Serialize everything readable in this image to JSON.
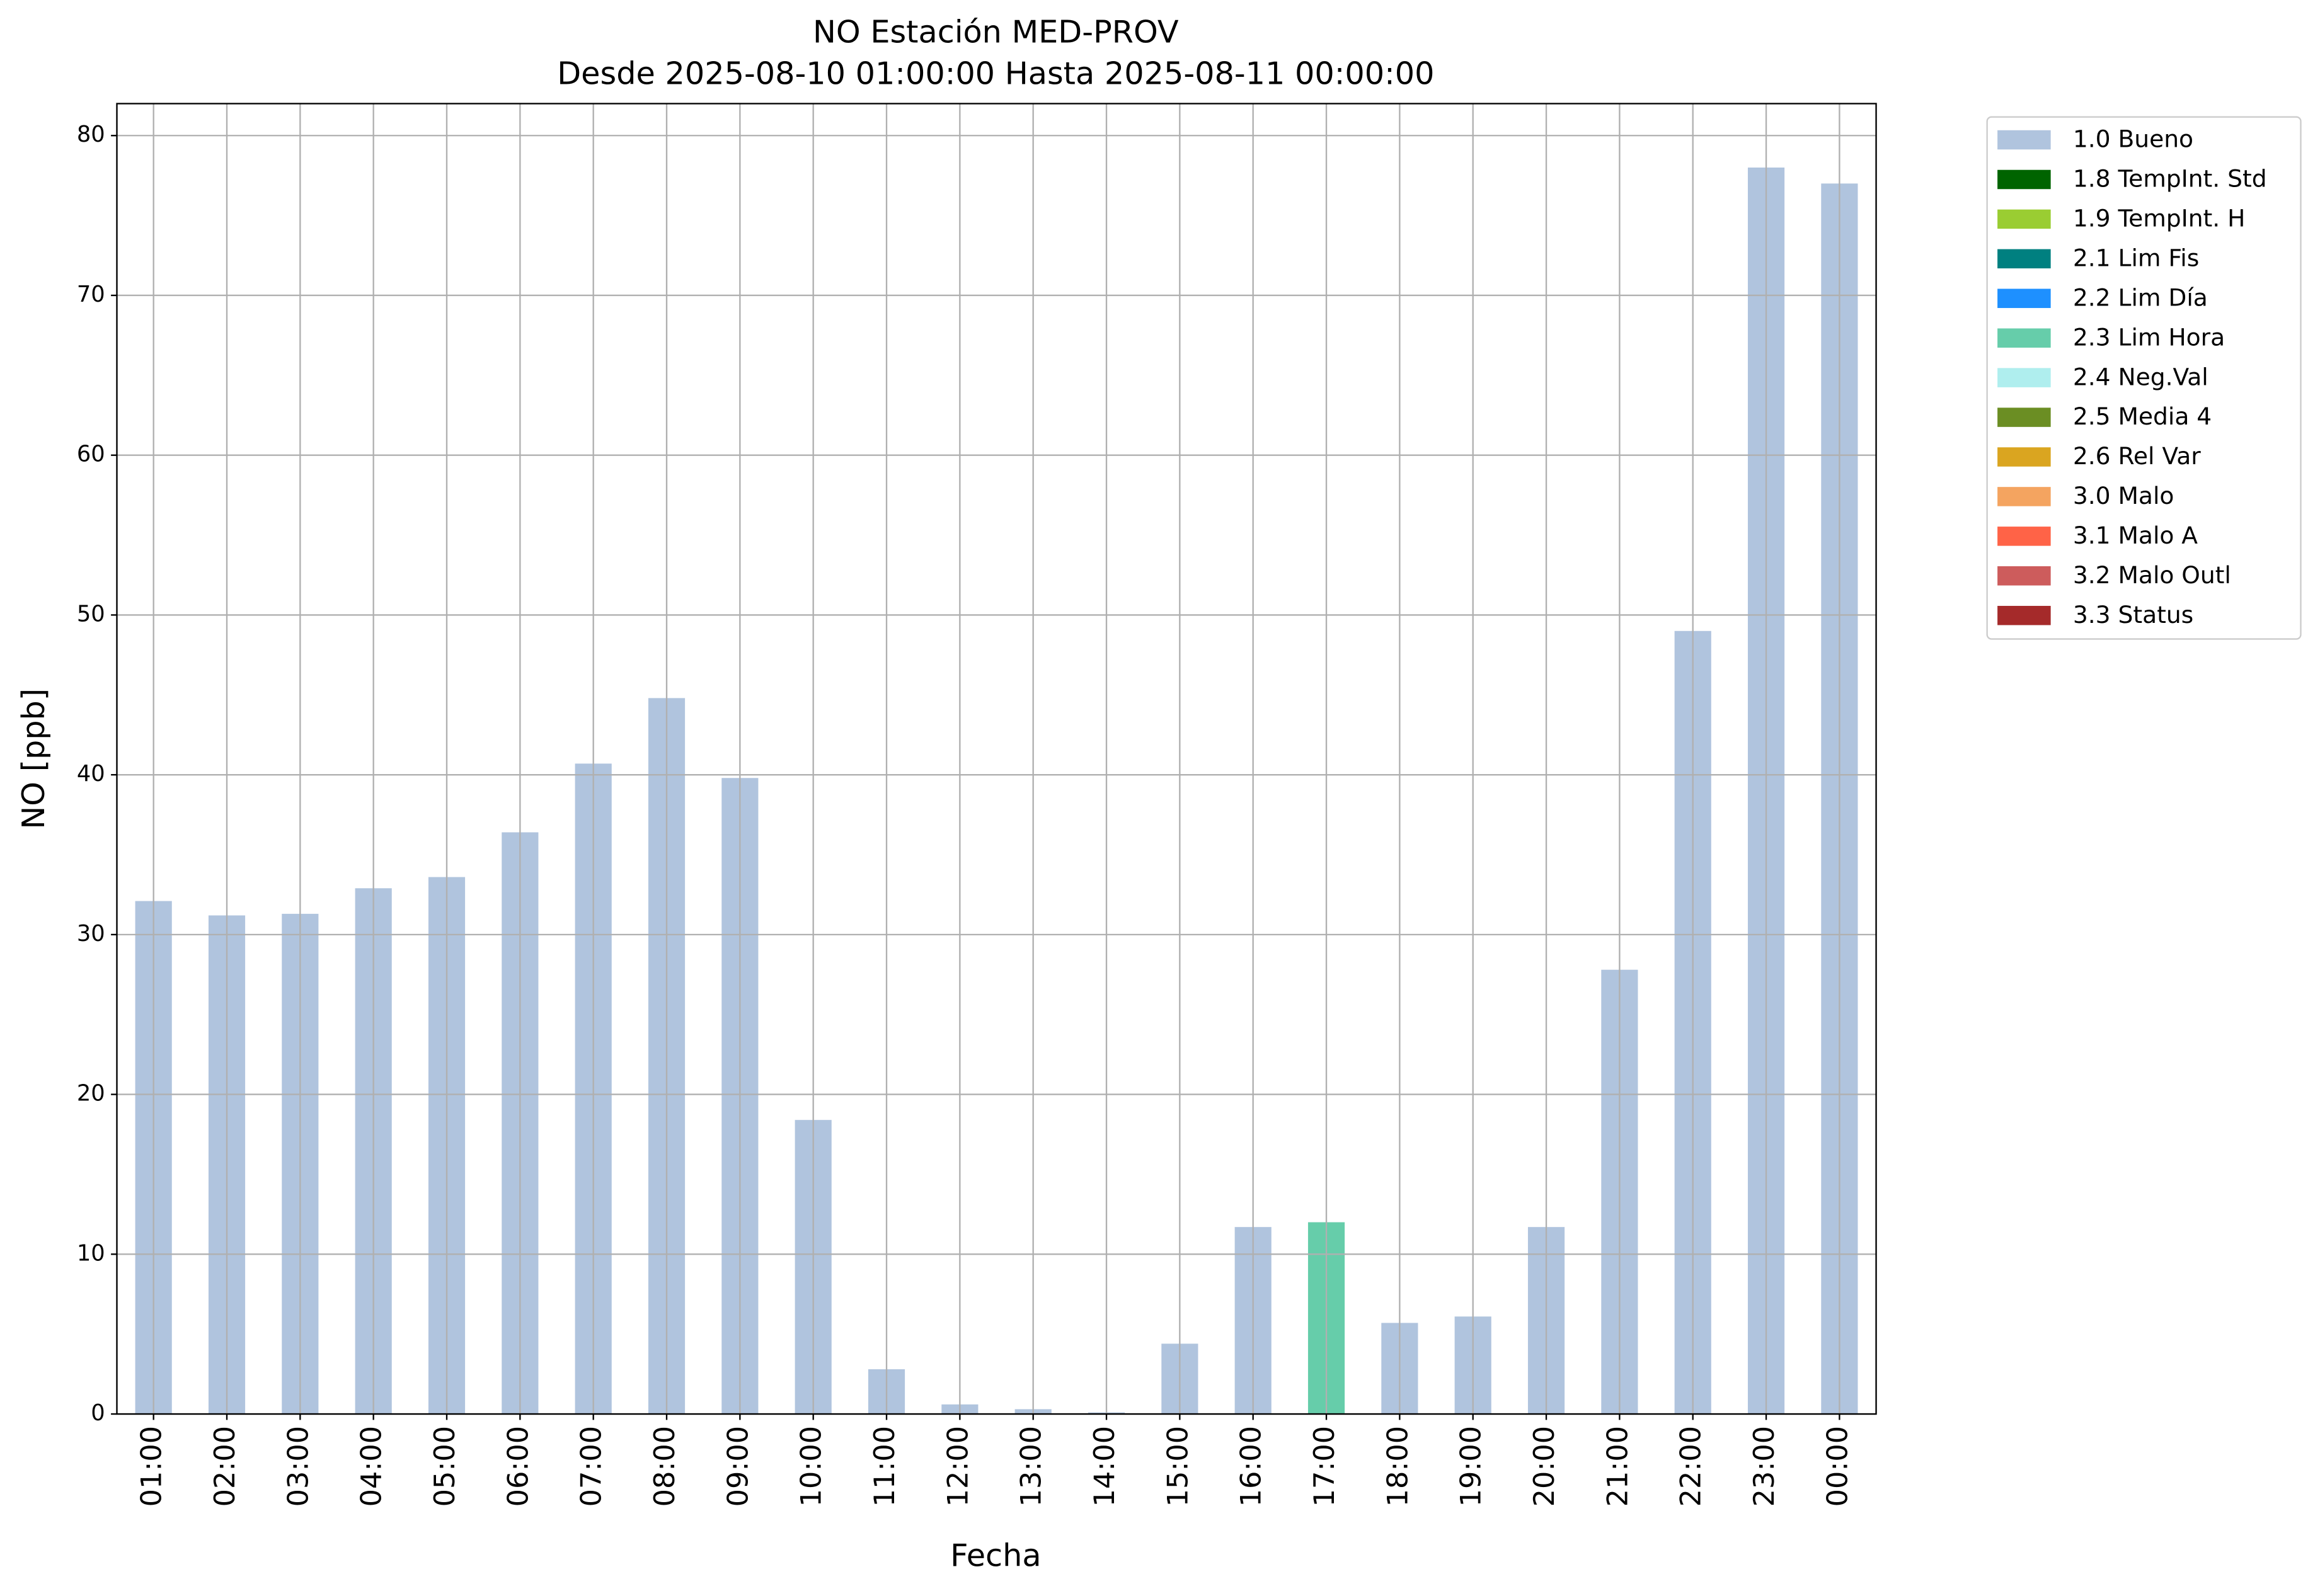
{
  "chart_data": {
    "type": "bar",
    "stacked": true,
    "title": "NO Estación MED-PROV",
    "subtitle": "Desde 2025-08-10 01:00:00 Hasta 2025-08-11 00:00:00",
    "x_label": "Fecha",
    "y_label": "NO [ppb]",
    "categories": [
      "01:00",
      "02:00",
      "03:00",
      "04:00",
      "05:00",
      "06:00",
      "07:00",
      "08:00",
      "09:00",
      "10:00",
      "11:00",
      "12:00",
      "13:00",
      "14:00",
      "15:00",
      "16:00",
      "17:00",
      "18:00",
      "19:00",
      "20:00",
      "21:00",
      "22:00",
      "23:00",
      "00:00"
    ],
    "ylim": [
      0,
      82
    ],
    "yticks": [
      0,
      10,
      20,
      30,
      40,
      50,
      60,
      70,
      80
    ],
    "grid": true,
    "legend": "outside-right",
    "series": [
      {
        "name": "1.0 Bueno",
        "color": "#b0c4de",
        "values": [
          32.1,
          31.2,
          31.3,
          32.9,
          33.6,
          36.4,
          40.7,
          44.8,
          39.8,
          18.4,
          2.8,
          0.6,
          0.3,
          0.1,
          4.4,
          11.7,
          null,
          5.7,
          6.1,
          11.7,
          27.8,
          49.0,
          78.0,
          77.0
        ]
      },
      {
        "name": "1.8 TempInt. Std",
        "color": "#006400",
        "values": [
          null,
          null,
          null,
          null,
          null,
          null,
          null,
          null,
          null,
          null,
          null,
          null,
          null,
          null,
          null,
          null,
          null,
          null,
          null,
          null,
          null,
          null,
          null,
          null
        ]
      },
      {
        "name": "1.9 TempInt. H",
        "color": "#9acd32",
        "values": [
          null,
          null,
          null,
          null,
          null,
          null,
          null,
          null,
          null,
          null,
          null,
          null,
          null,
          null,
          null,
          null,
          null,
          null,
          null,
          null,
          null,
          null,
          null,
          null
        ]
      },
      {
        "name": "2.1 Lim Fis",
        "color": "#008080",
        "values": [
          null,
          null,
          null,
          null,
          null,
          null,
          null,
          null,
          null,
          null,
          null,
          null,
          null,
          null,
          null,
          null,
          null,
          null,
          null,
          null,
          null,
          null,
          null,
          null
        ]
      },
      {
        "name": "2.2 Lim Día",
        "color": "#1e90ff",
        "values": [
          null,
          null,
          null,
          null,
          null,
          null,
          null,
          null,
          null,
          null,
          null,
          null,
          null,
          null,
          null,
          null,
          null,
          null,
          null,
          null,
          null,
          null,
          null,
          null
        ]
      },
      {
        "name": "2.3 Lim Hora",
        "color": "#66cdaa",
        "values": [
          null,
          null,
          null,
          null,
          null,
          null,
          null,
          null,
          null,
          null,
          null,
          null,
          null,
          null,
          null,
          null,
          12.0,
          null,
          null,
          null,
          null,
          null,
          null,
          null
        ]
      },
      {
        "name": "2.4 Neg.Val",
        "color": "#afeeee",
        "values": [
          null,
          null,
          null,
          null,
          null,
          null,
          null,
          null,
          null,
          null,
          null,
          null,
          null,
          null,
          null,
          null,
          null,
          null,
          null,
          null,
          null,
          null,
          null,
          null
        ]
      },
      {
        "name": "2.5 Media 4",
        "color": "#6b8e23",
        "values": [
          null,
          null,
          null,
          null,
          null,
          null,
          null,
          null,
          null,
          null,
          null,
          null,
          null,
          null,
          null,
          null,
          null,
          null,
          null,
          null,
          null,
          null,
          null,
          null
        ]
      },
      {
        "name": "2.6 Rel Var",
        "color": "#daa520",
        "values": [
          null,
          null,
          null,
          null,
          null,
          null,
          null,
          null,
          null,
          null,
          null,
          null,
          null,
          null,
          null,
          null,
          null,
          null,
          null,
          null,
          null,
          null,
          null,
          null
        ]
      },
      {
        "name": "3.0 Malo",
        "color": "#f4a460",
        "values": [
          null,
          null,
          null,
          null,
          null,
          null,
          null,
          null,
          null,
          null,
          null,
          null,
          null,
          null,
          null,
          null,
          null,
          null,
          null,
          null,
          null,
          null,
          null,
          null
        ]
      },
      {
        "name": "3.1 Malo A",
        "color": "#ff6347",
        "values": [
          null,
          null,
          null,
          null,
          null,
          null,
          null,
          null,
          null,
          null,
          null,
          null,
          null,
          null,
          null,
          null,
          null,
          null,
          null,
          null,
          null,
          null,
          null,
          null
        ]
      },
      {
        "name": "3.2 Malo Outl",
        "color": "#cd5c5c",
        "values": [
          null,
          null,
          null,
          null,
          null,
          null,
          null,
          null,
          null,
          null,
          null,
          null,
          null,
          null,
          null,
          null,
          null,
          null,
          null,
          null,
          null,
          null,
          null,
          null
        ]
      },
      {
        "name": "3.3 Status",
        "color": "#a52a2a",
        "values": [
          null,
          null,
          null,
          null,
          null,
          null,
          null,
          null,
          null,
          null,
          null,
          null,
          null,
          null,
          null,
          null,
          null,
          null,
          null,
          null,
          null,
          null,
          null,
          null
        ]
      }
    ]
  }
}
